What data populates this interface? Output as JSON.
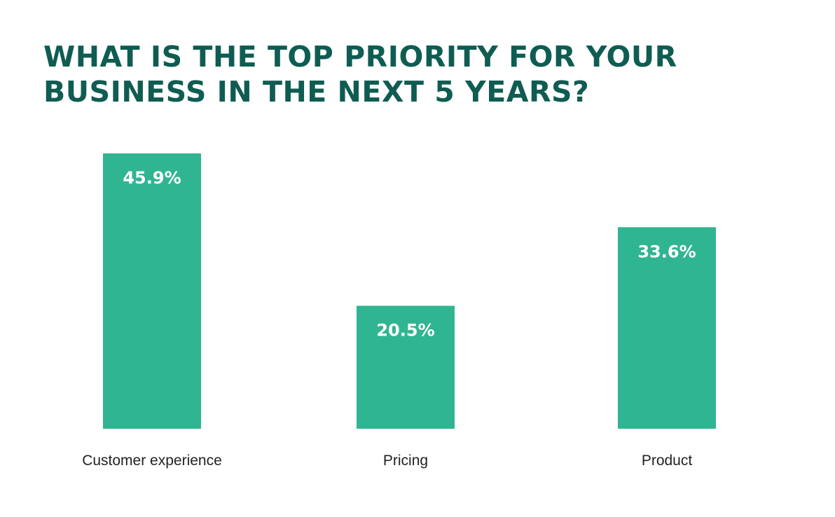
{
  "colors": {
    "title": "#0f5c52",
    "bar": "#30b592",
    "bar_label": "#ffffff",
    "category_label": "#222222"
  },
  "chart_data": {
    "type": "bar",
    "title": [
      "WHAT IS THE TOP PRIORITY FOR YOUR",
      "BUSINESS IN THE NEXT 5 YEARS?"
    ],
    "categories": [
      "Customer experience",
      "Pricing",
      "Product"
    ],
    "values": [
      45.9,
      20.5,
      33.6
    ],
    "data_labels": [
      "45.9%",
      "20.5%",
      "33.6%"
    ],
    "xlabel": "",
    "ylabel": "",
    "ylim": [
      0,
      45.9
    ],
    "grid": false,
    "axes_visible": false
  }
}
